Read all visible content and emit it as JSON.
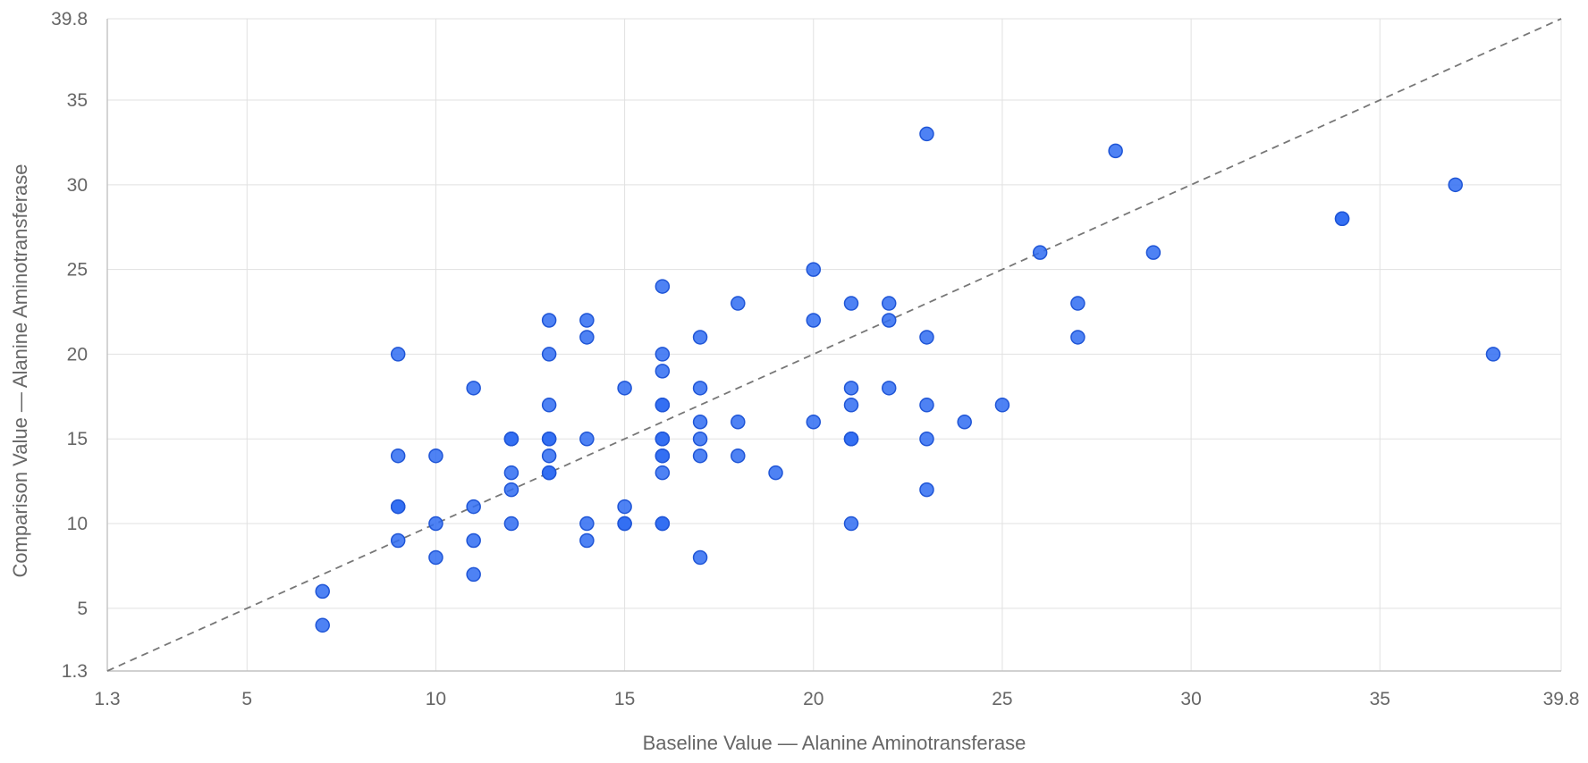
{
  "chart_data": {
    "type": "scatter",
    "xlabel": "Baseline Value — Alanine Aminotransferase",
    "ylabel": "Comparison Value — Alanine Aminotransferase",
    "xlim": [
      1.3,
      39.8
    ],
    "ylim": [
      1.3,
      39.8
    ],
    "x_ticks": [
      "1.3",
      "5",
      "10",
      "15",
      "20",
      "25",
      "30",
      "35",
      "39.8"
    ],
    "y_ticks": [
      "1.3",
      "5",
      "10",
      "15",
      "20",
      "25",
      "30",
      "35",
      "39.8"
    ],
    "x_tick_values": [
      1.3,
      5,
      10,
      15,
      20,
      25,
      30,
      35,
      39.8
    ],
    "y_tick_values": [
      1.3,
      5,
      10,
      15,
      20,
      25,
      30,
      35,
      39.8
    ],
    "grid": true,
    "reference_line": {
      "style": "dashed",
      "from": [
        1.3,
        1.3
      ],
      "to": [
        39.8,
        39.8
      ],
      "color": "#777777"
    },
    "point_color": "#2f6cf2",
    "points": [
      {
        "x": 7,
        "y": 4
      },
      {
        "x": 7,
        "y": 6
      },
      {
        "x": 9,
        "y": 9
      },
      {
        "x": 9,
        "y": 11
      },
      {
        "x": 9,
        "y": 11
      },
      {
        "x": 9,
        "y": 14
      },
      {
        "x": 9,
        "y": 20
      },
      {
        "x": 10,
        "y": 8
      },
      {
        "x": 10,
        "y": 10
      },
      {
        "x": 10,
        "y": 14
      },
      {
        "x": 11,
        "y": 7
      },
      {
        "x": 11,
        "y": 9
      },
      {
        "x": 11,
        "y": 11
      },
      {
        "x": 11,
        "y": 18
      },
      {
        "x": 12,
        "y": 10
      },
      {
        "x": 12,
        "y": 12
      },
      {
        "x": 12,
        "y": 13
      },
      {
        "x": 12,
        "y": 15
      },
      {
        "x": 12,
        "y": 15
      },
      {
        "x": 13,
        "y": 13
      },
      {
        "x": 13,
        "y": 13
      },
      {
        "x": 13,
        "y": 14
      },
      {
        "x": 13,
        "y": 15
      },
      {
        "x": 13,
        "y": 15
      },
      {
        "x": 13,
        "y": 17
      },
      {
        "x": 13,
        "y": 20
      },
      {
        "x": 13,
        "y": 22
      },
      {
        "x": 14,
        "y": 9
      },
      {
        "x": 14,
        "y": 10
      },
      {
        "x": 14,
        "y": 15
      },
      {
        "x": 14,
        "y": 21
      },
      {
        "x": 14,
        "y": 22
      },
      {
        "x": 15,
        "y": 10
      },
      {
        "x": 15,
        "y": 10
      },
      {
        "x": 15,
        "y": 11
      },
      {
        "x": 15,
        "y": 18
      },
      {
        "x": 16,
        "y": 10
      },
      {
        "x": 16,
        "y": 10
      },
      {
        "x": 16,
        "y": 13
      },
      {
        "x": 16,
        "y": 14
      },
      {
        "x": 16,
        "y": 14
      },
      {
        "x": 16,
        "y": 15
      },
      {
        "x": 16,
        "y": 15
      },
      {
        "x": 16,
        "y": 17
      },
      {
        "x": 16,
        "y": 17
      },
      {
        "x": 16,
        "y": 19
      },
      {
        "x": 16,
        "y": 20
      },
      {
        "x": 16,
        "y": 24
      },
      {
        "x": 17,
        "y": 8
      },
      {
        "x": 17,
        "y": 14
      },
      {
        "x": 17,
        "y": 15
      },
      {
        "x": 17,
        "y": 16
      },
      {
        "x": 17,
        "y": 18
      },
      {
        "x": 17,
        "y": 21
      },
      {
        "x": 18,
        "y": 14
      },
      {
        "x": 18,
        "y": 16
      },
      {
        "x": 18,
        "y": 23
      },
      {
        "x": 19,
        "y": 13
      },
      {
        "x": 20,
        "y": 16
      },
      {
        "x": 20,
        "y": 22
      },
      {
        "x": 20,
        "y": 25
      },
      {
        "x": 21,
        "y": 10
      },
      {
        "x": 21,
        "y": 15
      },
      {
        "x": 21,
        "y": 15
      },
      {
        "x": 21,
        "y": 17
      },
      {
        "x": 21,
        "y": 18
      },
      {
        "x": 21,
        "y": 23
      },
      {
        "x": 22,
        "y": 18
      },
      {
        "x": 22,
        "y": 22
      },
      {
        "x": 22,
        "y": 23
      },
      {
        "x": 23,
        "y": 12
      },
      {
        "x": 23,
        "y": 15
      },
      {
        "x": 23,
        "y": 17
      },
      {
        "x": 23,
        "y": 21
      },
      {
        "x": 23,
        "y": 33
      },
      {
        "x": 24,
        "y": 16
      },
      {
        "x": 25,
        "y": 17
      },
      {
        "x": 26,
        "y": 26
      },
      {
        "x": 27,
        "y": 21
      },
      {
        "x": 27,
        "y": 23
      },
      {
        "x": 28,
        "y": 32
      },
      {
        "x": 29,
        "y": 26
      },
      {
        "x": 34,
        "y": 28
      },
      {
        "x": 34,
        "y": 28
      },
      {
        "x": 37,
        "y": 30
      },
      {
        "x": 38,
        "y": 20
      }
    ]
  }
}
